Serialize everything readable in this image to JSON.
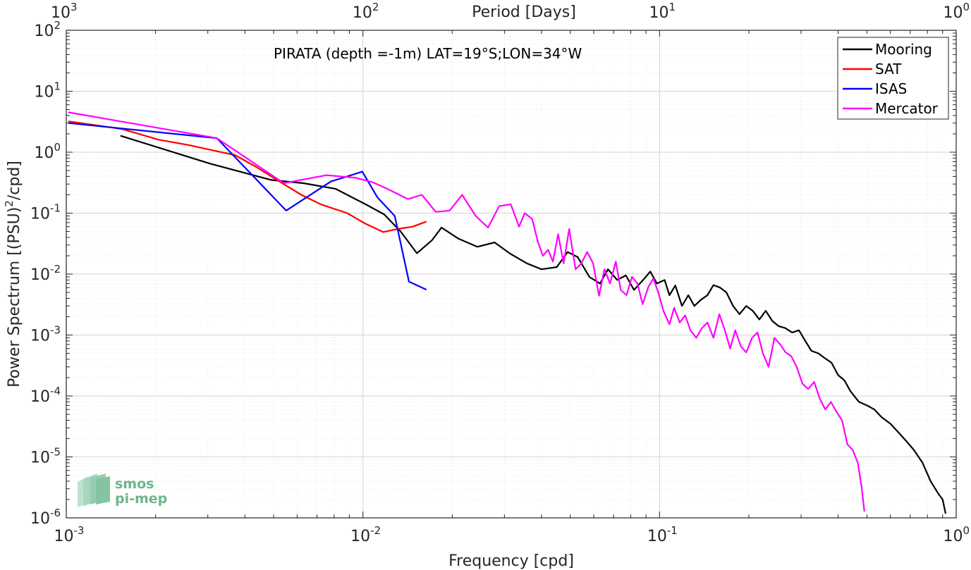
{
  "chart_data": {
    "type": "line",
    "title": "PIRATA (depth =-1m) LAT=19°S;LON=34°W",
    "xlabel": "Frequency [cpd]",
    "ylabel": "Power Spectrum [(PSU)",
    "ylabel_sup": "2",
    "ylabel_tail": "/cpd]",
    "top_xlabel": "Period [Days]",
    "x_scale": "log",
    "y_scale": "log",
    "xlim": [
      0.001,
      1
    ],
    "ylim": [
      1e-06,
      100
    ],
    "grid": true,
    "minor_grid": true,
    "legend_position": "top-right",
    "x_ticks": [
      {
        "base": "10",
        "exp": "-3",
        "value": 0.001
      },
      {
        "base": "10",
        "exp": "-2",
        "value": 0.01
      },
      {
        "base": "10",
        "exp": "-1",
        "value": 0.1
      },
      {
        "base": "10",
        "exp": "0",
        "value": 1
      }
    ],
    "top_ticks": [
      {
        "base": "10",
        "exp": "3",
        "freq": 0.001
      },
      {
        "base": "10",
        "exp": "2",
        "freq": 0.01
      },
      {
        "base": "10",
        "exp": "1",
        "freq": 0.1
      },
      {
        "base": "10",
        "exp": "0",
        "freq": 1
      }
    ],
    "y_ticks": [
      {
        "base": "10",
        "exp": "2",
        "value": 100
      },
      {
        "base": "10",
        "exp": "1",
        "value": 10
      },
      {
        "base": "10",
        "exp": "0",
        "value": 1
      },
      {
        "base": "10",
        "exp": "-1",
        "value": 0.1
      },
      {
        "base": "10",
        "exp": "-2",
        "value": 0.01
      },
      {
        "base": "10",
        "exp": "-3",
        "value": 0.001
      },
      {
        "base": "10",
        "exp": "-4",
        "value": 0.0001
      },
      {
        "base": "10",
        "exp": "-5",
        "value": 1e-05
      },
      {
        "base": "10",
        "exp": "-6",
        "value": 1e-06
      }
    ],
    "series": [
      {
        "name": "Mooring",
        "color": "#000000",
        "points": [
          [
            0.00153,
            1.85
          ],
          [
            0.00305,
            0.65
          ],
          [
            0.0049,
            0.35
          ],
          [
            0.0063,
            0.31
          ],
          [
            0.0081,
            0.25
          ],
          [
            0.0102,
            0.14
          ],
          [
            0.0118,
            0.095
          ],
          [
            0.0134,
            0.05
          ],
          [
            0.0152,
            0.022
          ],
          [
            0.0171,
            0.036
          ],
          [
            0.0184,
            0.058
          ],
          [
            0.021,
            0.038
          ],
          [
            0.0243,
            0.028
          ],
          [
            0.0278,
            0.033
          ],
          [
            0.0312,
            0.022
          ],
          [
            0.0357,
            0.015
          ],
          [
            0.04,
            0.012
          ],
          [
            0.045,
            0.013
          ],
          [
            0.049,
            0.023
          ],
          [
            0.053,
            0.019
          ],
          [
            0.058,
            0.009
          ],
          [
            0.063,
            0.007
          ],
          [
            0.067,
            0.012
          ],
          [
            0.072,
            0.008
          ],
          [
            0.077,
            0.0095
          ],
          [
            0.082,
            0.0055
          ],
          [
            0.088,
            0.008
          ],
          [
            0.093,
            0.011
          ],
          [
            0.098,
            0.007
          ],
          [
            0.104,
            0.008
          ],
          [
            0.108,
            0.0045
          ],
          [
            0.113,
            0.0065
          ],
          [
            0.119,
            0.003
          ],
          [
            0.125,
            0.0045
          ],
          [
            0.131,
            0.003
          ],
          [
            0.138,
            0.0038
          ],
          [
            0.145,
            0.0045
          ],
          [
            0.152,
            0.0066
          ],
          [
            0.16,
            0.006
          ],
          [
            0.168,
            0.005
          ],
          [
            0.177,
            0.003
          ],
          [
            0.186,
            0.0022
          ],
          [
            0.196,
            0.003
          ],
          [
            0.206,
            0.0025
          ],
          [
            0.217,
            0.0018
          ],
          [
            0.228,
            0.0025
          ],
          [
            0.24,
            0.0017
          ],
          [
            0.252,
            0.0014
          ],
          [
            0.265,
            0.0013
          ],
          [
            0.28,
            0.0011
          ],
          [
            0.295,
            0.0012
          ],
          [
            0.31,
            0.0008
          ],
          [
            0.325,
            0.00055
          ],
          [
            0.343,
            0.0005
          ],
          [
            0.36,
            0.00042
          ],
          [
            0.38,
            0.00035
          ],
          [
            0.4,
            0.00022
          ],
          [
            0.42,
            0.00018
          ],
          [
            0.44,
            0.00012
          ],
          [
            0.47,
            8e-05
          ],
          [
            0.5,
            7e-05
          ],
          [
            0.53,
            6e-05
          ],
          [
            0.56,
            4.5e-05
          ],
          [
            0.6,
            3.5e-05
          ],
          [
            0.64,
            2.5e-05
          ],
          [
            0.68,
            1.8e-05
          ],
          [
            0.72,
            1.3e-05
          ],
          [
            0.77,
            8e-06
          ],
          [
            0.82,
            4e-06
          ],
          [
            0.87,
            2.5e-06
          ],
          [
            0.9,
            2e-06
          ],
          [
            0.92,
            1.2e-06
          ]
        ]
      },
      {
        "name": "SAT",
        "color": "#ff0000",
        "points": [
          [
            0.00102,
            3.2
          ],
          [
            0.00154,
            2.4
          ],
          [
            0.00205,
            1.6
          ],
          [
            0.0026,
            1.3
          ],
          [
            0.00318,
            1.05
          ],
          [
            0.0037,
            0.9
          ],
          [
            0.00435,
            0.58
          ],
          [
            0.00523,
            0.33
          ],
          [
            0.0062,
            0.2
          ],
          [
            0.0072,
            0.14
          ],
          [
            0.00885,
            0.1
          ],
          [
            0.0102,
            0.067
          ],
          [
            0.0117,
            0.049
          ],
          [
            0.0131,
            0.055
          ],
          [
            0.0147,
            0.06
          ],
          [
            0.0163,
            0.072
          ]
        ]
      },
      {
        "name": "ISAS",
        "color": "#0000ff",
        "points": [
          [
            0.00102,
            3.0
          ],
          [
            0.00322,
            1.7
          ],
          [
            0.00551,
            0.11
          ],
          [
            0.0078,
            0.33
          ],
          [
            0.00995,
            0.48
          ],
          [
            0.0112,
            0.18
          ],
          [
            0.0128,
            0.09
          ],
          [
            0.0143,
            0.0075
          ],
          [
            0.0163,
            0.0056
          ]
        ]
      },
      {
        "name": "Mercator",
        "color": "#ff00ff",
        "points": [
          [
            0.00102,
            4.5
          ],
          [
            0.00322,
            1.7
          ],
          [
            0.00541,
            0.31
          ],
          [
            0.00755,
            0.42
          ],
          [
            0.00945,
            0.38
          ],
          [
            0.0108,
            0.32
          ],
          [
            0.0121,
            0.25
          ],
          [
            0.0142,
            0.17
          ],
          [
            0.0158,
            0.2
          ],
          [
            0.0176,
            0.105
          ],
          [
            0.0196,
            0.11
          ],
          [
            0.0216,
            0.2
          ],
          [
            0.024,
            0.09
          ],
          [
            0.0264,
            0.058
          ],
          [
            0.0288,
            0.13
          ],
          [
            0.0315,
            0.14
          ],
          [
            0.0336,
            0.06
          ],
          [
            0.0351,
            0.1
          ],
          [
            0.0372,
            0.08
          ],
          [
            0.0388,
            0.035
          ],
          [
            0.0404,
            0.02
          ],
          [
            0.0421,
            0.025
          ],
          [
            0.0437,
            0.016
          ],
          [
            0.0455,
            0.045
          ],
          [
            0.0475,
            0.015
          ],
          [
            0.0496,
            0.055
          ],
          [
            0.0521,
            0.012
          ],
          [
            0.0545,
            0.015
          ],
          [
            0.057,
            0.023
          ],
          [
            0.0597,
            0.015
          ],
          [
            0.0625,
            0.0044
          ],
          [
            0.0652,
            0.012
          ],
          [
            0.0681,
            0.007
          ],
          [
            0.0712,
            0.016
          ],
          [
            0.074,
            0.0055
          ],
          [
            0.0774,
            0.0045
          ],
          [
            0.0807,
            0.009
          ],
          [
            0.0842,
            0.007
          ],
          [
            0.0877,
            0.0032
          ],
          [
            0.0915,
            0.006
          ],
          [
            0.0953,
            0.0085
          ],
          [
            0.099,
            0.005
          ],
          [
            0.103,
            0.0025
          ],
          [
            0.108,
            0.0015
          ],
          [
            0.112,
            0.0028
          ],
          [
            0.117,
            0.0016
          ],
          [
            0.122,
            0.0021
          ],
          [
            0.127,
            0.0012
          ],
          [
            0.133,
            0.0009
          ],
          [
            0.139,
            0.0013
          ],
          [
            0.145,
            0.0016
          ],
          [
            0.152,
            0.0009
          ],
          [
            0.159,
            0.0022
          ],
          [
            0.166,
            0.0012
          ],
          [
            0.173,
            0.0006
          ],
          [
            0.18,
            0.0012
          ],
          [
            0.188,
            0.00065
          ],
          [
            0.196,
            0.00052
          ],
          [
            0.205,
            0.0009
          ],
          [
            0.214,
            0.0011
          ],
          [
            0.223,
            0.0005
          ],
          [
            0.233,
            0.0003
          ],
          [
            0.244,
            0.0009
          ],
          [
            0.255,
            0.0007
          ],
          [
            0.266,
            0.00052
          ],
          [
            0.278,
            0.00045
          ],
          [
            0.29,
            0.0003
          ],
          [
            0.303,
            0.00016
          ],
          [
            0.317,
            0.00013
          ],
          [
            0.332,
            0.00017
          ],
          [
            0.347,
            9e-05
          ],
          [
            0.362,
            6e-05
          ],
          [
            0.378,
            8e-05
          ],
          [
            0.395,
            5.5e-05
          ],
          [
            0.412,
            4e-05
          ],
          [
            0.43,
            1.6e-05
          ],
          [
            0.448,
            1.3e-05
          ],
          [
            0.466,
            8e-06
          ],
          [
            0.48,
            3.2e-06
          ],
          [
            0.49,
            1.3e-06
          ]
        ]
      }
    ],
    "legend": [
      "Mooring",
      "SAT",
      "ISAS",
      "Mercator"
    ]
  },
  "watermark": {
    "line1": "smos",
    "line2": "pi-mep",
    "color": "#6db58e"
  }
}
